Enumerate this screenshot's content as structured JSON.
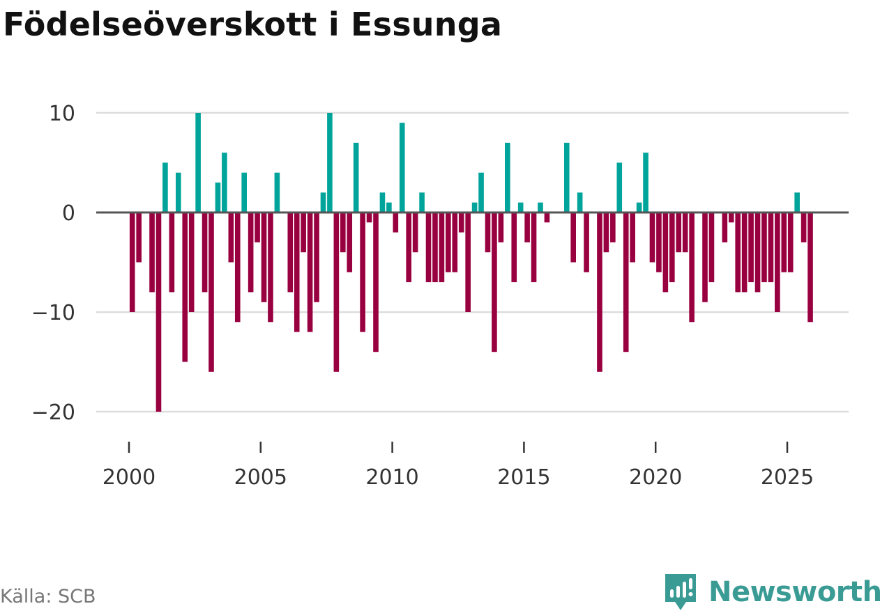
{
  "title": "Födelseöverskott i Essunga",
  "source": "Källa: SCB",
  "brand": {
    "name": "Newsworthy",
    "icon": "newsworthy-logo-icon"
  },
  "colors": {
    "positive": "#00a49a",
    "negative": "#990040",
    "grid": "#dddddd",
    "zero_line": "#555555",
    "brand": "#3a9b95"
  },
  "chart_data": {
    "type": "bar",
    "title": "Födelseöverskott i Essunga",
    "xlabel": "",
    "ylabel": "",
    "xlim": [
      1999.25,
      2028.0
    ],
    "ylim": [
      -21.5,
      11.5
    ],
    "x_ticks": [
      2000,
      2005,
      2010,
      2015,
      2020,
      2025
    ],
    "x_tick_labels": [
      "2000",
      "2005",
      "2010",
      "2015",
      "2020",
      "2025"
    ],
    "y_ticks": [
      10,
      0,
      -10,
      -20
    ],
    "y_tick_labels": [
      "10",
      "0",
      "−10",
      "−20"
    ],
    "grid": true,
    "frequency": "quarterly",
    "x": [
      2000.125,
      2000.375,
      2000.625,
      2000.875,
      2001.125,
      2001.375,
      2001.625,
      2001.875,
      2002.125,
      2002.375,
      2002.625,
      2002.875,
      2003.125,
      2003.375,
      2003.625,
      2003.875,
      2004.125,
      2004.375,
      2004.625,
      2004.875,
      2005.125,
      2005.375,
      2005.625,
      2005.875,
      2006.125,
      2006.375,
      2006.625,
      2006.875,
      2007.125,
      2007.375,
      2007.625,
      2007.875,
      2008.125,
      2008.375,
      2008.625,
      2008.875,
      2009.125,
      2009.375,
      2009.625,
      2009.875,
      2010.125,
      2010.375,
      2010.625,
      2010.875,
      2011.125,
      2011.375,
      2011.625,
      2011.875,
      2012.125,
      2012.375,
      2012.625,
      2012.875,
      2013.125,
      2013.375,
      2013.625,
      2013.875,
      2014.125,
      2014.375,
      2014.625,
      2014.875,
      2015.125,
      2015.375,
      2015.625,
      2015.875,
      2016.125,
      2016.375,
      2016.625,
      2016.875,
      2017.125,
      2017.375,
      2017.625,
      2017.875,
      2018.125,
      2018.375,
      2018.625,
      2018.875,
      2019.125,
      2019.375,
      2019.625,
      2019.875,
      2020.125,
      2020.375,
      2020.625,
      2020.875,
      2021.125,
      2021.375,
      2021.625,
      2021.875,
      2022.125,
      2022.375,
      2022.625,
      2022.875,
      2023.125,
      2023.375,
      2023.625,
      2023.875,
      2024.125,
      2024.375,
      2024.625,
      2024.875,
      2025.125,
      2025.375,
      2025.625,
      2025.875
    ],
    "values": [
      -10,
      -5,
      0,
      -8,
      -20,
      5,
      -8,
      4,
      -15,
      -10,
      10,
      -8,
      -16,
      3,
      6,
      -5,
      -11,
      4,
      -8,
      -3,
      -9,
      -11,
      4,
      0,
      -8,
      -12,
      -4,
      -12,
      -9,
      2,
      10,
      -16,
      -4,
      -6,
      7,
      -12,
      -1,
      -14,
      2,
      1,
      -2,
      9,
      -7,
      -4,
      2,
      -7,
      -7,
      -7,
      -6,
      -6,
      -2,
      -10,
      1,
      4,
      -4,
      -14,
      -3,
      7,
      -7,
      1,
      -3,
      -7,
      1,
      -1,
      0,
      0,
      7,
      -5,
      2,
      -6,
      0,
      -16,
      -4,
      -3,
      5,
      -14,
      -5,
      1,
      6,
      -5,
      -6,
      -8,
      -7,
      -4,
      -4,
      -11,
      0,
      -9,
      -7,
      0,
      -3,
      -1,
      -8,
      -8,
      -7,
      -8,
      -7,
      -7,
      -10,
      -6,
      -6,
      2,
      -3,
      -11
    ]
  }
}
